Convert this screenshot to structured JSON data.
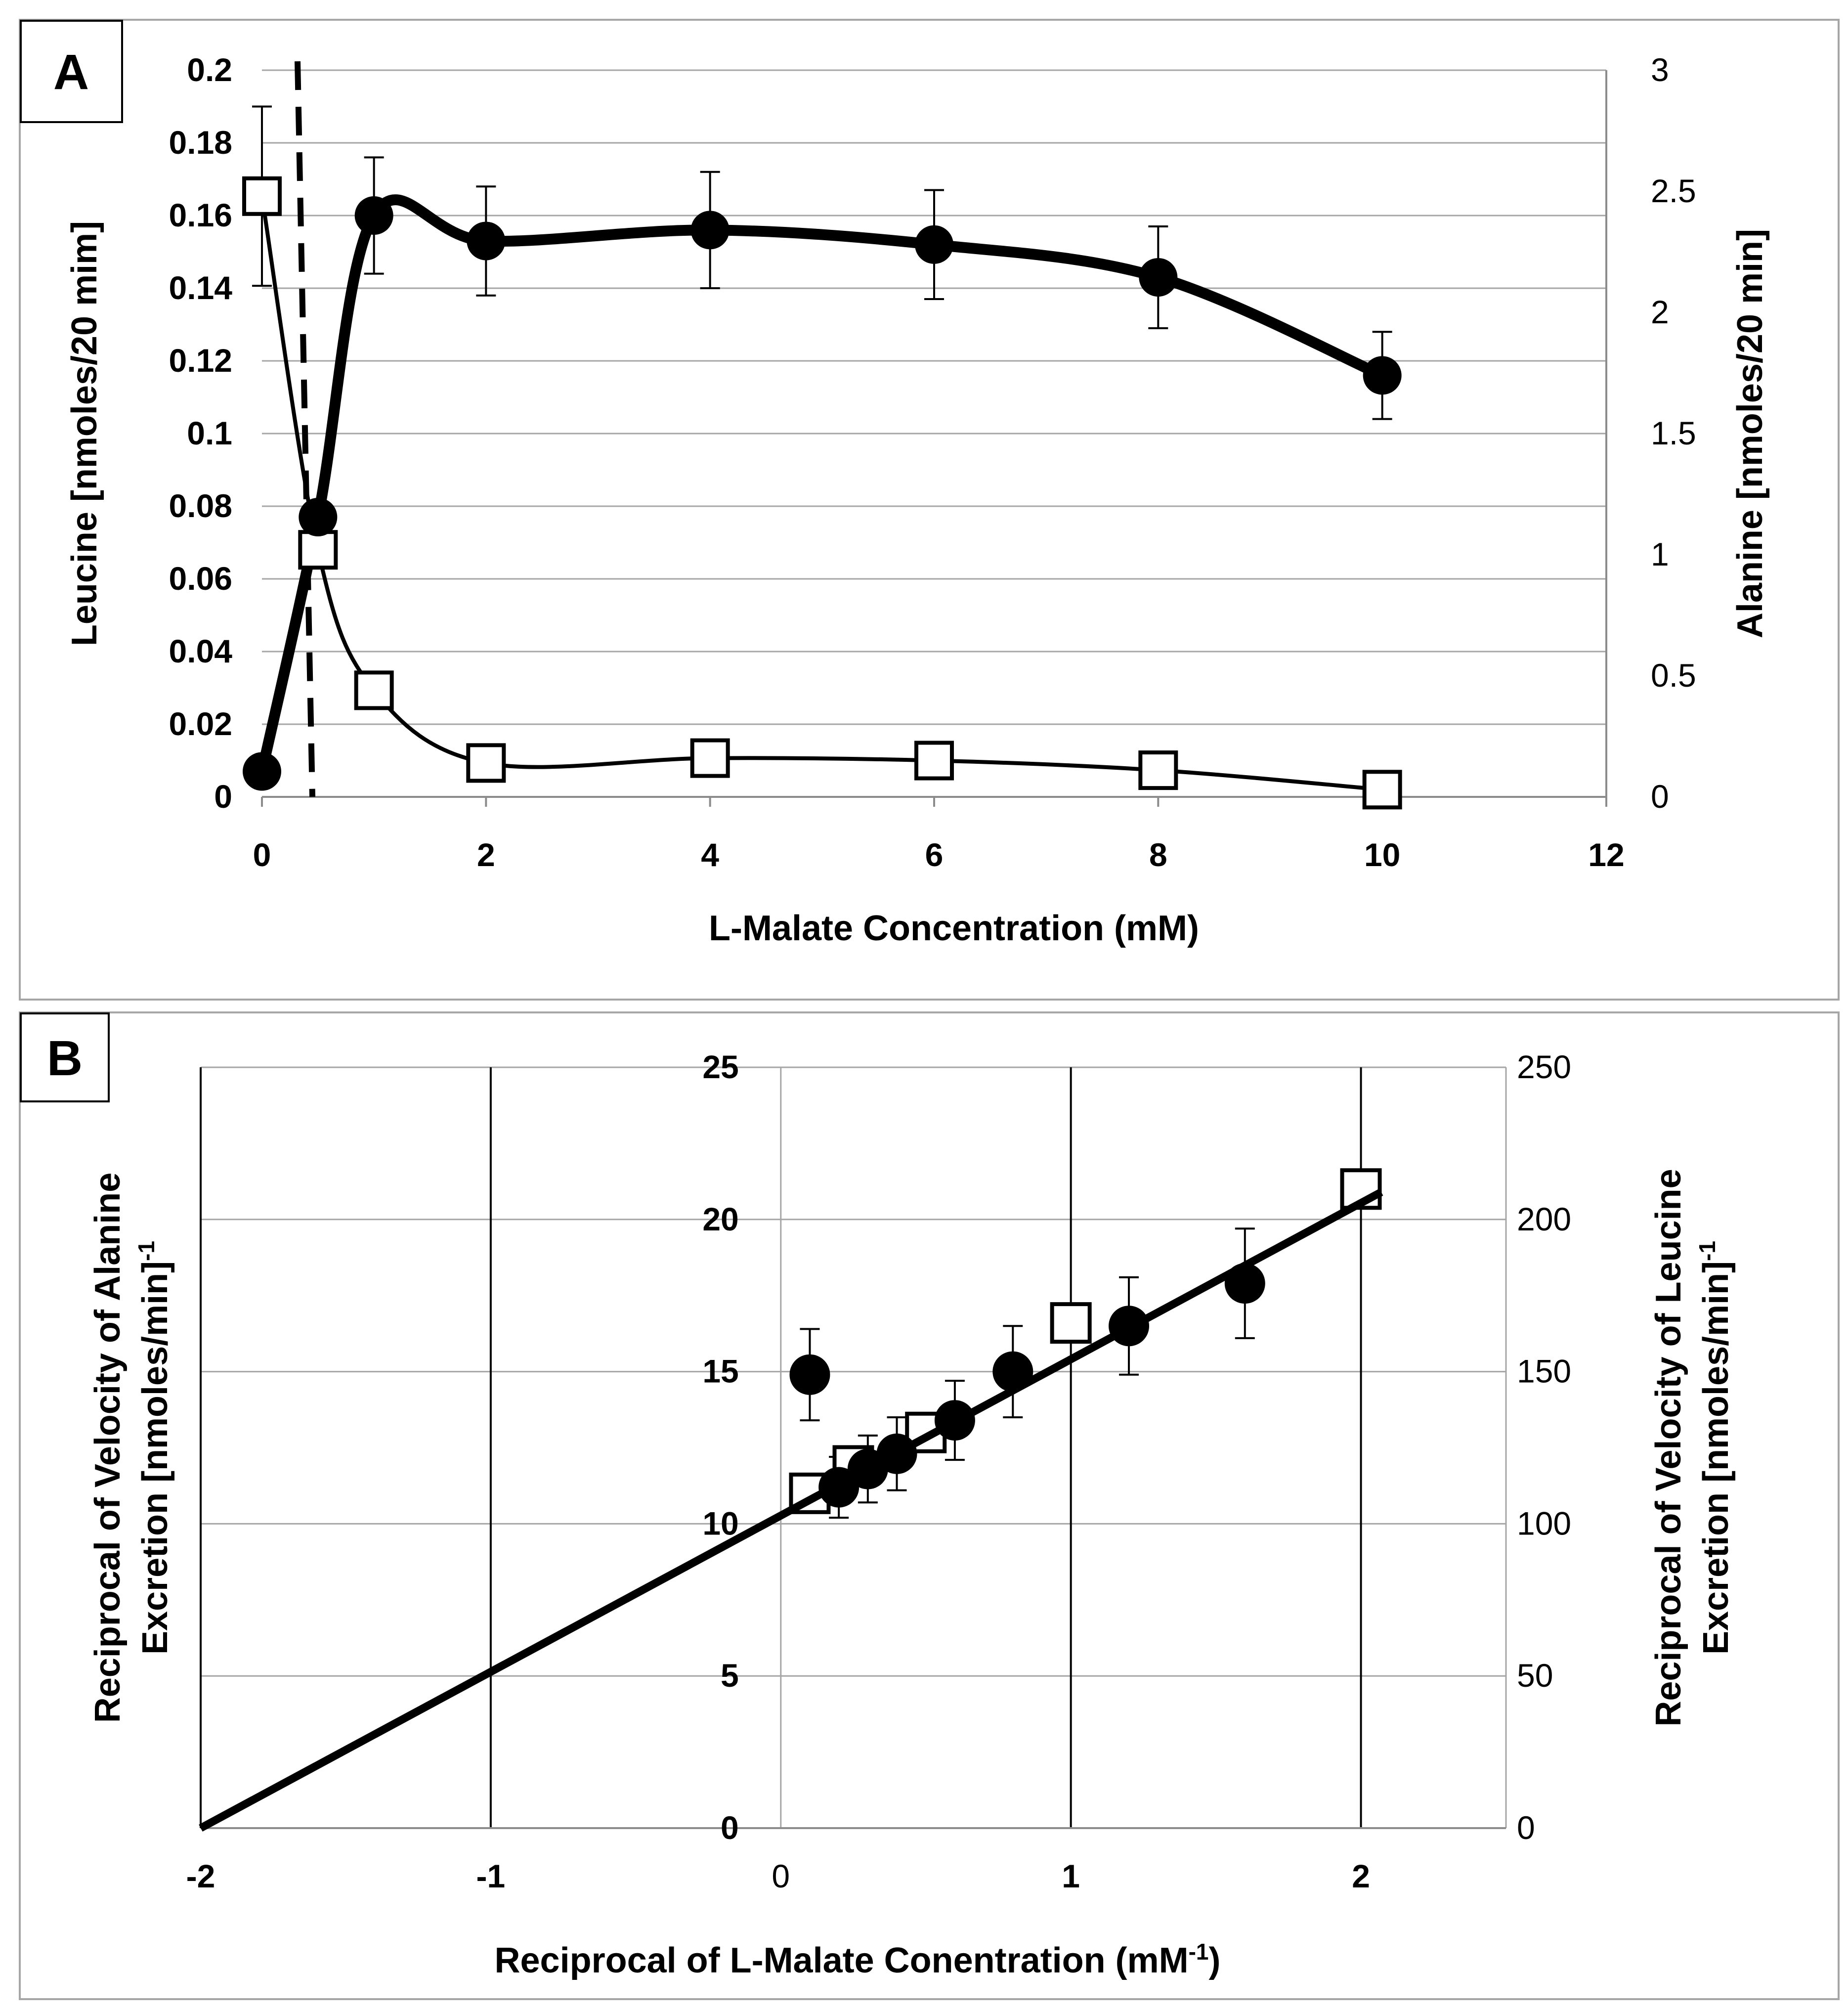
{
  "chart_data": [
    {
      "panel": "A",
      "type": "line",
      "xlabel": "L-Malate Concentration (mM)",
      "ylabel_left": "Leucine [nmoles/20 mim]",
      "ylabel_right": "Alanine [nmoles/20 min]",
      "xlim": [
        0,
        12
      ],
      "ylim_left": [
        0,
        0.2
      ],
      "ylim_right": [
        0,
        3
      ],
      "x_ticks": [
        "0",
        "2",
        "4",
        "6",
        "8",
        "10",
        "12"
      ],
      "y_left_ticks": [
        "0",
        "0.02",
        "0.04",
        "0.06",
        "0.08",
        "0.1",
        "0.12",
        "0.14",
        "0.16",
        "0.18",
        "0.2"
      ],
      "y_right_ticks": [
        "0",
        "0.5",
        "1",
        "1.5",
        "2",
        "2.5",
        "3"
      ],
      "dashed_line_x": 0.45,
      "series": [
        {
          "name": "Leucine",
          "axis": "left",
          "marker": "filled-circle",
          "x": [
            0,
            0.5,
            1,
            2,
            4,
            6,
            8,
            10
          ],
          "values": [
            0.007,
            0.077,
            0.16,
            0.153,
            0.156,
            0.152,
            0.143,
            0.116
          ],
          "err": [
            0,
            0,
            0.016,
            0.015,
            0.016,
            0.015,
            0.014,
            0.012
          ]
        },
        {
          "name": "Alanine",
          "axis": "right",
          "marker": "open-square",
          "x": [
            0,
            0.5,
            1,
            2,
            4,
            6,
            8,
            10
          ],
          "values": [
            2.48,
            1.02,
            0.44,
            0.14,
            0.16,
            0.15,
            0.11,
            0.03
          ],
          "err": [
            0.37,
            0,
            0,
            0,
            0,
            0,
            0,
            0
          ]
        }
      ]
    },
    {
      "panel": "B",
      "type": "scatter",
      "xlabel": "Reciprocal of L-Malate Conentration (mM",
      "xlabel_sup": "-1",
      "xlabel_end": ")",
      "ylabel_left_line1": "Reciprocal of Velocity of Alanine",
      "ylabel_left_line2": "Excretion [nmoles/min]",
      "ylabel_left_sup": "-1",
      "ylabel_right_line1": "Reciprocal of Velocity of Leucine",
      "ylabel_right_line2": "Excretion [nmoles/min]",
      "ylabel_right_sup": "-1",
      "xlim": [
        -2,
        2.5
      ],
      "ylim_left": [
        0,
        25
      ],
      "ylim_right": [
        0,
        250
      ],
      "x_ticks": [
        "-2",
        "-1",
        "0",
        "1",
        "2"
      ],
      "y_left_ticks": [
        "0",
        "5",
        "10",
        "15",
        "20",
        "25"
      ],
      "y_right_ticks": [
        "0",
        "50",
        "100",
        "150",
        "200",
        "250"
      ],
      "fit_line": {
        "x": [
          -2,
          2.07
        ],
        "y": [
          0,
          20.9
        ]
      },
      "series": [
        {
          "name": "Leucine",
          "axis": "right",
          "marker": "filled-circle",
          "x": [
            0.1,
            0.2,
            0.3,
            0.4,
            0.6,
            0.8,
            1.2,
            1.6
          ],
          "values": [
            149,
            112,
            118,
            123,
            134,
            150,
            165,
            179
          ],
          "err": [
            15,
            10,
            11,
            12,
            13,
            15,
            16,
            18
          ]
        },
        {
          "name": "Alanine",
          "axis": "left",
          "marker": "open-square",
          "x": [
            0.1,
            0.25,
            0.5,
            1.0,
            2.0
          ],
          "values": [
            11.0,
            11.9,
            13.0,
            16.6,
            21.0
          ]
        }
      ]
    }
  ]
}
